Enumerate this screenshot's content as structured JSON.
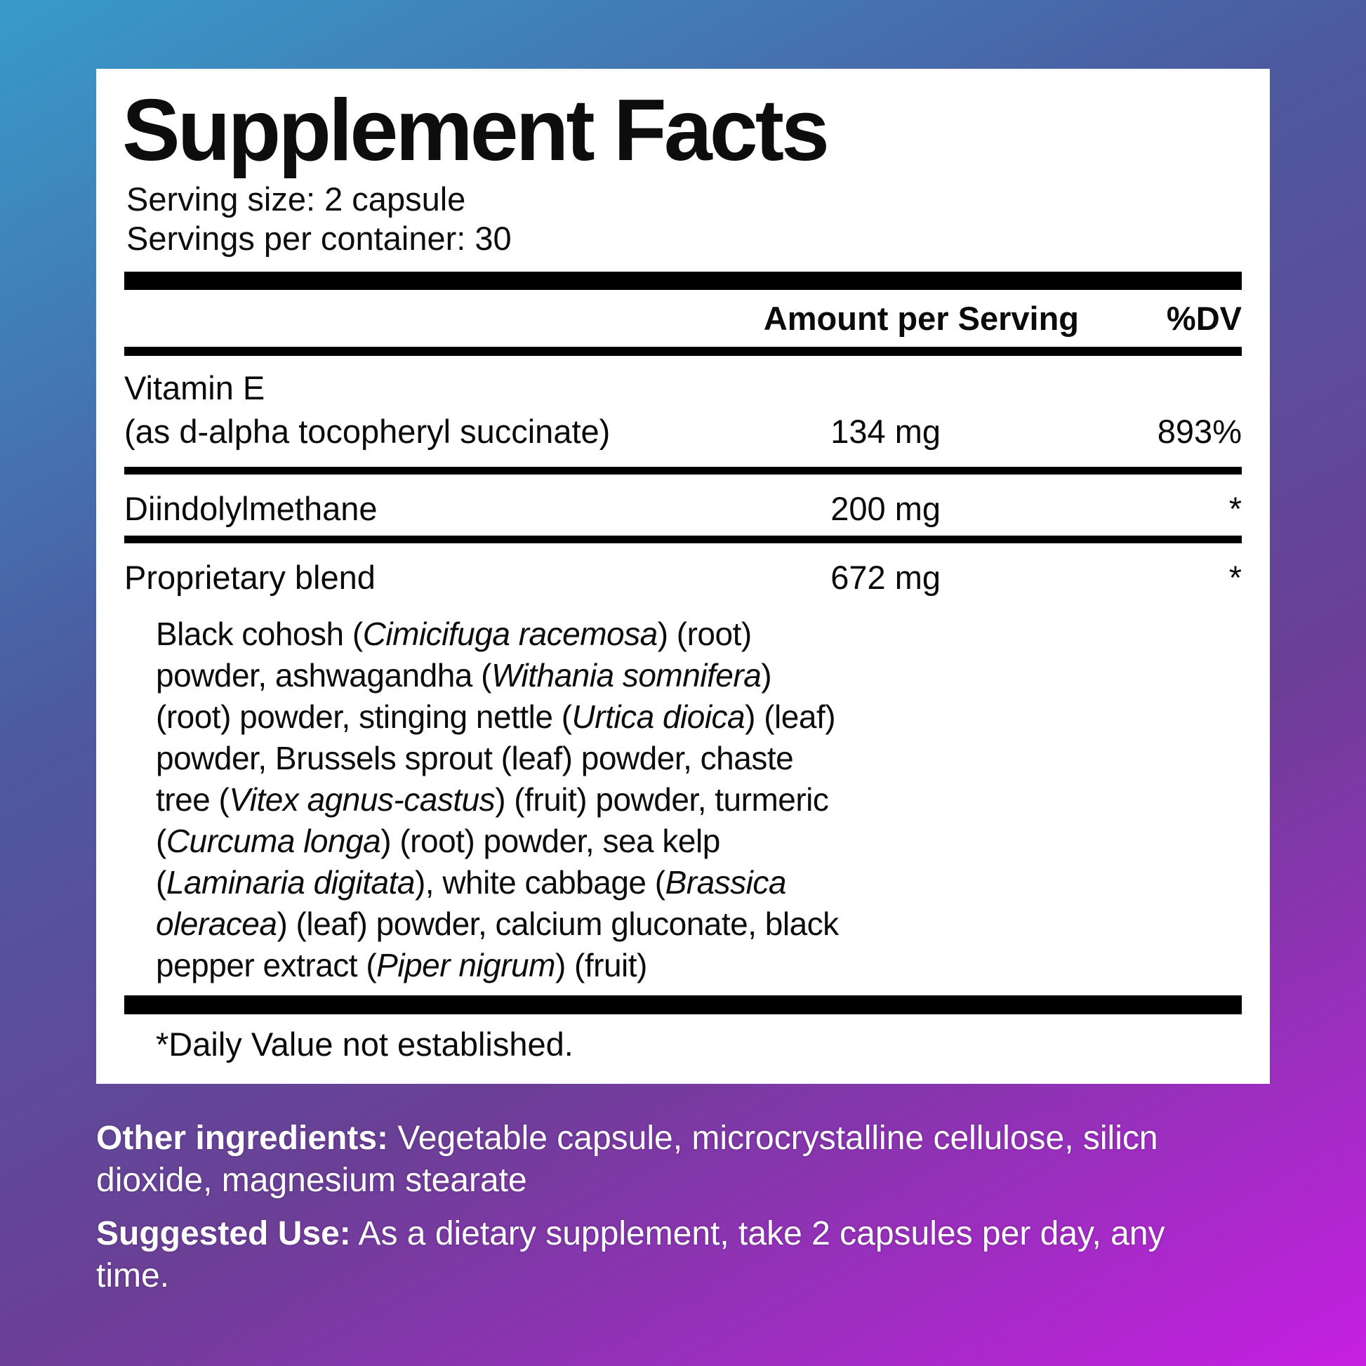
{
  "background": {
    "gradient_top_left": "#389bca",
    "gradient_upper_mid": "#4c5ba0",
    "gradient_lower_mid": "#6b3f96",
    "gradient_bottom_right": "#c61fe2"
  },
  "label": {
    "title": "Supplement Facts",
    "serving_size": "Serving size: 2 capsule",
    "servings_per_container": "Servings per container: 30",
    "columns": {
      "amount": "Amount per Serving",
      "dv": "%DV"
    },
    "rows": [
      {
        "name": "Vitamin E",
        "name_detail": "(as d-alpha tocopheryl succinate)",
        "amount": "134 mg",
        "dv": "893%"
      },
      {
        "name": "Diindolylmethane",
        "amount": "200 mg",
        "dv": "*"
      },
      {
        "name": "Proprietary blend",
        "amount": "672 mg",
        "dv": "*"
      }
    ],
    "blend_lines": [
      [
        {
          "t": "Black cohosh ("
        },
        {
          "t": "Cimicifuga racemosa",
          "i": true
        },
        {
          "t": ") (root)"
        }
      ],
      [
        {
          "t": "powder, ashwagandha ("
        },
        {
          "t": "Withania somnifera",
          "i": true
        },
        {
          "t": ")"
        }
      ],
      [
        {
          "t": "(root) powder, stinging nettle ("
        },
        {
          "t": "Urtica dioica",
          "i": true
        },
        {
          "t": ") (leaf)"
        }
      ],
      [
        {
          "t": "powder, Brussels sprout (leaf) powder, chaste"
        }
      ],
      [
        {
          "t": "tree ("
        },
        {
          "t": "Vitex agnus-castus",
          "i": true
        },
        {
          "t": ") (fruit) powder, turmeric"
        }
      ],
      [
        {
          "t": "("
        },
        {
          "t": "Curcuma longa",
          "i": true
        },
        {
          "t": ") (root) powder, sea kelp"
        }
      ],
      [
        {
          "t": "("
        },
        {
          "t": "Laminaria digitata",
          "i": true
        },
        {
          "t": "), white cabbage ("
        },
        {
          "t": "Brassica",
          "i": true
        }
      ],
      [
        {
          "t": "oleracea",
          "i": true
        },
        {
          "t": ") (leaf) powder, calcium gluconate, black"
        }
      ],
      [
        {
          "t": "pepper extract ("
        },
        {
          "t": "Piper nigrum",
          "i": true
        },
        {
          "t": ") (fruit)"
        }
      ]
    ],
    "footnote": "*Daily Value not established."
  },
  "directions": {
    "other_ingredients_label": "Other ingredients:",
    "other_ingredients_text": " Vegetable capsule, microcrystalline cellulose, silicn dioxide, magnesium stearate",
    "suggested_use_label": "Suggested Use:",
    "suggested_use_text": " As a dietary supplement, take 2 capsules per day, any time."
  }
}
